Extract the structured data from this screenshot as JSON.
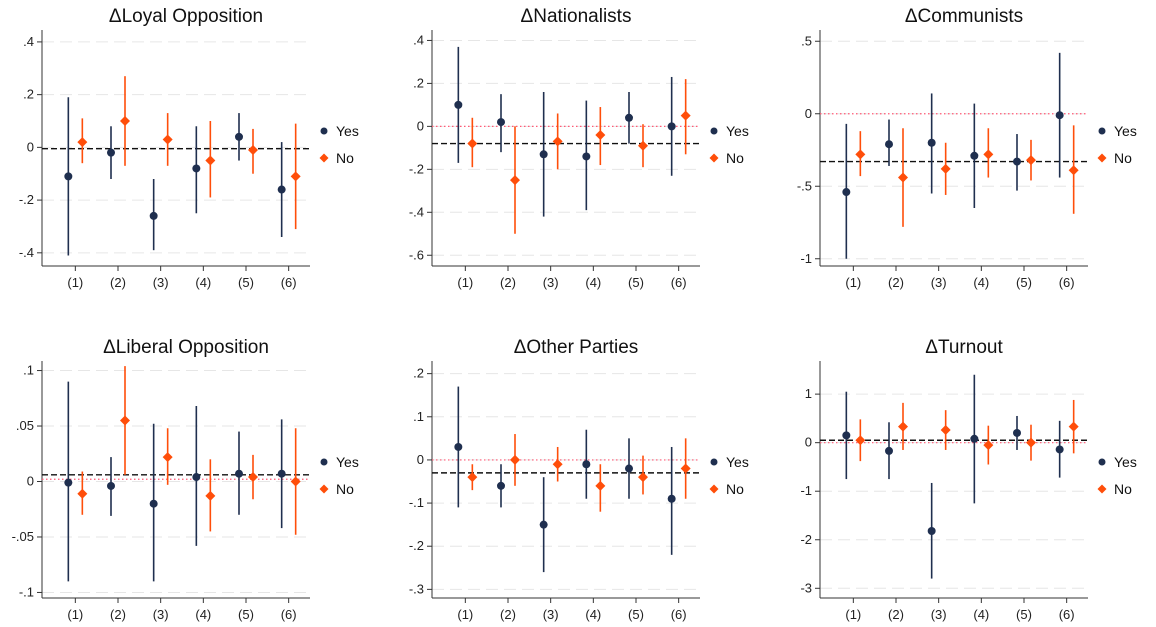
{
  "colors": {
    "yes": "#1f2f4f",
    "no": "#ff4e0a",
    "ref_line": "#111111",
    "zero_line": "#ff5a76",
    "grid": "#e6e6e6",
    "axis": "#333333"
  },
  "legend": {
    "yes_label": "Yes",
    "no_label": "No",
    "placement": "right"
  },
  "chart_data": [
    {
      "type": "scatter",
      "title": "ΔLoyal Opposition",
      "categories": [
        "(1)",
        "(2)",
        "(3)",
        "(4)",
        "(5)",
        "(6)"
      ],
      "ylim": [
        -0.45,
        0.43
      ],
      "yticks": [
        0.4,
        0.2,
        0,
        -0.2,
        -0.4
      ],
      "ytick_labels": [
        ".4",
        ".2",
        "0",
        "-.2",
        "-.4"
      ],
      "ref_line": -0.005,
      "series": [
        {
          "name": "Yes",
          "values": [
            -0.11,
            -0.02,
            -0.26,
            -0.08,
            0.04,
            -0.16
          ],
          "ci_low": [
            -0.41,
            -0.12,
            -0.39,
            -0.25,
            -0.05,
            -0.34
          ],
          "ci_high": [
            0.19,
            0.08,
            -0.12,
            0.08,
            0.13,
            0.02
          ]
        },
        {
          "name": "No",
          "values": [
            0.02,
            0.1,
            0.03,
            -0.05,
            -0.01,
            -0.11
          ],
          "ci_low": [
            -0.06,
            -0.07,
            -0.07,
            -0.19,
            -0.1,
            -0.31
          ],
          "ci_high": [
            0.11,
            0.27,
            0.13,
            0.1,
            0.07,
            0.09
          ]
        }
      ]
    },
    {
      "type": "scatter",
      "title": "ΔNationalists",
      "categories": [
        "(1)",
        "(2)",
        "(3)",
        "(4)",
        "(5)",
        "(6)"
      ],
      "ylim": [
        -0.65,
        0.43
      ],
      "yticks": [
        0.4,
        0.2,
        0,
        -0.2,
        -0.4,
        -0.6
      ],
      "ytick_labels": [
        ".4",
        ".2",
        "0",
        "-.2",
        "-.4",
        "-.6"
      ],
      "ref_line": -0.08,
      "zero_line": 0,
      "series": [
        {
          "name": "Yes",
          "values": [
            0.1,
            0.02,
            -0.13,
            -0.14,
            0.04,
            0.0
          ],
          "ci_low": [
            -0.17,
            -0.12,
            -0.42,
            -0.39,
            -0.08,
            -0.23
          ],
          "ci_high": [
            0.37,
            0.15,
            0.16,
            0.12,
            0.16,
            0.23
          ]
        },
        {
          "name": "No",
          "values": [
            -0.08,
            -0.25,
            -0.07,
            -0.04,
            -0.09,
            0.05
          ],
          "ci_low": [
            -0.19,
            -0.5,
            -0.2,
            -0.18,
            -0.19,
            -0.13
          ],
          "ci_high": [
            0.04,
            0.0,
            0.06,
            0.09,
            0.01,
            0.22
          ]
        }
      ]
    },
    {
      "type": "scatter",
      "title": "ΔCommunists",
      "categories": [
        "(1)",
        "(2)",
        "(3)",
        "(4)",
        "(5)",
        "(6)"
      ],
      "ylim": [
        -1.05,
        0.55
      ],
      "yticks": [
        0.5,
        0,
        -0.5,
        -1
      ],
      "ytick_labels": [
        ".5",
        "0",
        "-.5",
        "-1"
      ],
      "ref_line": -0.33,
      "zero_line": 0,
      "series": [
        {
          "name": "Yes",
          "values": [
            -0.54,
            -0.21,
            -0.2,
            -0.29,
            -0.33,
            -0.01
          ],
          "ci_low": [
            -1.0,
            -0.36,
            -0.55,
            -0.65,
            -0.53,
            -0.44
          ],
          "ci_high": [
            -0.07,
            -0.04,
            0.14,
            0.07,
            -0.14,
            0.42
          ]
        },
        {
          "name": "No",
          "values": [
            -0.28,
            -0.44,
            -0.38,
            -0.28,
            -0.32,
            -0.39
          ],
          "ci_low": [
            -0.43,
            -0.78,
            -0.56,
            -0.44,
            -0.46,
            -0.69
          ],
          "ci_high": [
            -0.12,
            -0.1,
            -0.2,
            -0.1,
            -0.18,
            -0.08
          ]
        }
      ]
    },
    {
      "type": "scatter",
      "title": "ΔLiberal Opposition",
      "categories": [
        "(1)",
        "(2)",
        "(3)",
        "(4)",
        "(5)",
        "(6)"
      ],
      "ylim": [
        -0.105,
        0.105
      ],
      "yticks": [
        0.1,
        0.05,
        0,
        -0.05,
        -0.1
      ],
      "ytick_labels": [
        ".1",
        ".05",
        "0",
        "-.05",
        "-.1"
      ],
      "ref_line": 0.006,
      "zero_line": 0.002,
      "series": [
        {
          "name": "Yes",
          "values": [
            -0.001,
            -0.004,
            -0.02,
            0.004,
            0.007,
            0.007
          ],
          "ci_low": [
            -0.09,
            -0.031,
            -0.09,
            -0.058,
            -0.03,
            -0.042
          ],
          "ci_high": [
            0.09,
            0.022,
            0.052,
            0.068,
            0.045,
            0.056
          ]
        },
        {
          "name": "No",
          "values": [
            -0.011,
            0.055,
            0.022,
            -0.013,
            0.004,
            0.0
          ],
          "ci_low": [
            -0.03,
            0.006,
            -0.003,
            -0.045,
            -0.016,
            -0.048
          ],
          "ci_high": [
            0.009,
            0.104,
            0.048,
            0.02,
            0.024,
            0.048
          ]
        }
      ]
    },
    {
      "type": "scatter",
      "title": "ΔOther Parties",
      "categories": [
        "(1)",
        "(2)",
        "(3)",
        "(4)",
        "(5)",
        "(6)"
      ],
      "ylim": [
        -0.32,
        0.22
      ],
      "yticks": [
        0.2,
        0.1,
        0,
        -0.1,
        -0.2,
        -0.3
      ],
      "ytick_labels": [
        ".2",
        ".1",
        "0",
        "-.1",
        "-.2",
        "-.3"
      ],
      "ref_line": -0.03,
      "zero_line": 0,
      "series": [
        {
          "name": "Yes",
          "values": [
            0.03,
            -0.06,
            -0.15,
            -0.01,
            -0.02,
            -0.09
          ],
          "ci_low": [
            -0.11,
            -0.11,
            -0.26,
            -0.09,
            -0.09,
            -0.22
          ],
          "ci_high": [
            0.17,
            -0.01,
            -0.04,
            0.07,
            0.05,
            0.03
          ]
        },
        {
          "name": "No",
          "values": [
            -0.04,
            0.0,
            -0.01,
            -0.06,
            -0.04,
            -0.02
          ],
          "ci_low": [
            -0.07,
            -0.06,
            -0.05,
            -0.12,
            -0.08,
            -0.09
          ],
          "ci_high": [
            -0.01,
            0.06,
            0.03,
            -0.01,
            0.01,
            0.05
          ]
        }
      ]
    },
    {
      "type": "scatter",
      "title": "ΔTurnout",
      "categories": [
        "(1)",
        "(2)",
        "(3)",
        "(4)",
        "(5)",
        "(6)"
      ],
      "ylim": [
        -3.2,
        1.6
      ],
      "yticks": [
        1,
        0,
        -1,
        -2,
        -3
      ],
      "ytick_labels": [
        "1",
        "0",
        "-1",
        "-2",
        "-3"
      ],
      "ref_line": 0.05,
      "zero_line": 0,
      "series": [
        {
          "name": "Yes",
          "values": [
            0.15,
            -0.17,
            -1.82,
            0.08,
            0.2,
            -0.14
          ],
          "ci_low": [
            -0.75,
            -0.75,
            -2.8,
            -1.25,
            -0.15,
            -0.72
          ],
          "ci_high": [
            1.05,
            0.42,
            -0.83,
            1.4,
            0.55,
            0.45
          ]
        },
        {
          "name": "No",
          "values": [
            0.05,
            0.33,
            0.26,
            -0.05,
            0.0,
            0.33
          ],
          "ci_low": [
            -0.38,
            -0.15,
            -0.15,
            -0.45,
            -0.37,
            -0.22
          ],
          "ci_high": [
            0.48,
            0.82,
            0.67,
            0.35,
            0.37,
            0.88
          ]
        }
      ]
    }
  ]
}
